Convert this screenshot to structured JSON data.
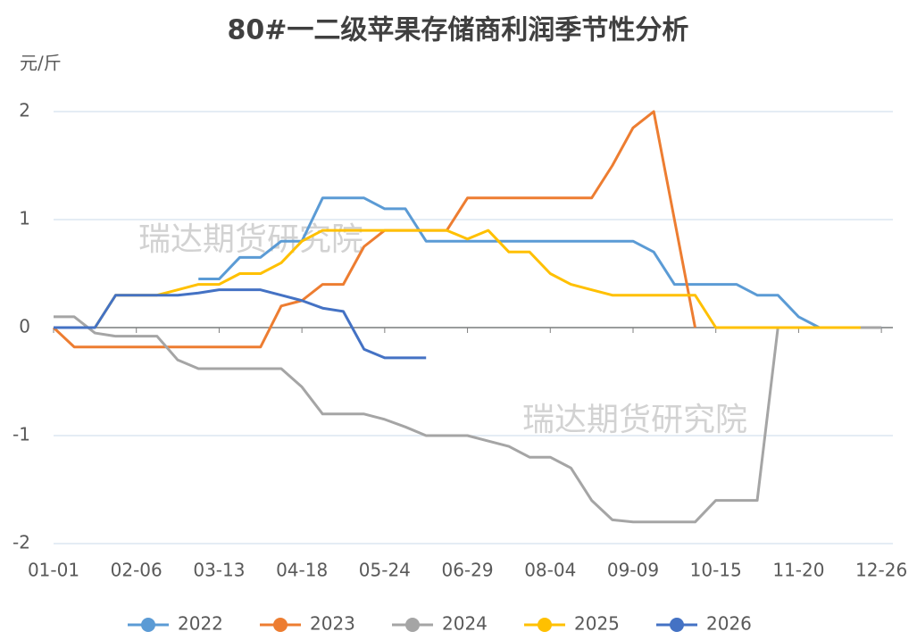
{
  "chart_data": {
    "type": "line",
    "title": "80#一二级苹果存储商利润季节性分析",
    "y_label": "元/斤",
    "annotations": [
      "瑞达期货研究院",
      "瑞达期货研究院"
    ],
    "x": [
      0,
      9,
      18,
      27,
      36,
      45,
      54,
      63,
      72,
      81,
      90,
      99,
      108,
      117,
      126,
      135,
      144,
      153,
      162,
      171,
      180,
      189,
      198,
      207,
      216,
      225,
      234,
      243,
      252,
      261,
      270,
      279,
      288,
      297,
      306,
      315,
      324,
      333,
      342,
      351,
      360
    ],
    "xlim": [
      0,
      365
    ],
    "xticks": [
      {
        "value": 0,
        "label": "01-01"
      },
      {
        "value": 36,
        "label": "02-06"
      },
      {
        "value": 72,
        "label": "03-13"
      },
      {
        "value": 108,
        "label": "04-18"
      },
      {
        "value": 144,
        "label": "05-24"
      },
      {
        "value": 180,
        "label": "06-29"
      },
      {
        "value": 216,
        "label": "08-04"
      },
      {
        "value": 252,
        "label": "09-09"
      },
      {
        "value": 288,
        "label": "10-15"
      },
      {
        "value": 324,
        "label": "11-20"
      },
      {
        "value": 360,
        "label": "12-26"
      }
    ],
    "ylim": [
      -2,
      2
    ],
    "yticks": [
      -2,
      -1,
      0,
      1,
      2
    ],
    "grid": true,
    "legend": "bottom",
    "series": [
      {
        "name": "2022",
        "color": "#5b9bd5",
        "values": [
          null,
          null,
          null,
          null,
          null,
          null,
          null,
          0.45,
          0.45,
          0.65,
          0.65,
          0.8,
          0.8,
          1.2,
          1.2,
          1.2,
          1.1,
          1.1,
          0.8,
          0.8,
          0.8,
          0.8,
          0.8,
          0.8,
          0.8,
          0.8,
          0.8,
          0.8,
          0.8,
          0.7,
          0.4,
          0.4,
          0.4,
          0.4,
          0.3,
          0.3,
          0.1,
          0,
          0,
          0,
          0
        ]
      },
      {
        "name": "2023",
        "color": "#ed7d31",
        "values": [
          0,
          -0.18,
          -0.18,
          -0.18,
          -0.18,
          -0.18,
          -0.18,
          -0.18,
          -0.18,
          -0.18,
          -0.18,
          0.2,
          0.25,
          0.4,
          0.4,
          0.75,
          0.9,
          0.9,
          0.9,
          0.9,
          1.2,
          1.2,
          1.2,
          1.2,
          1.2,
          1.2,
          1.2,
          1.5,
          1.85,
          2.0,
          1.0,
          0,
          null,
          null,
          null,
          null,
          null,
          null,
          null,
          null,
          null
        ]
      },
      {
        "name": "2024",
        "color": "#a5a5a5",
        "values": [
          0.1,
          0.1,
          -0.05,
          -0.08,
          -0.08,
          -0.08,
          -0.3,
          -0.38,
          -0.38,
          -0.38,
          -0.38,
          -0.38,
          -0.55,
          -0.8,
          -0.8,
          -0.8,
          -0.85,
          -0.92,
          -1.0,
          -1.0,
          -1.0,
          -1.05,
          -1.1,
          -1.2,
          -1.2,
          -1.3,
          -1.6,
          -1.78,
          -1.8,
          -1.8,
          -1.8,
          -1.8,
          -1.6,
          -1.6,
          -1.6,
          0,
          0,
          0,
          0,
          0,
          0
        ]
      },
      {
        "name": "2025",
        "color": "#ffc000",
        "values": [
          null,
          null,
          0,
          0.3,
          0.3,
          0.3,
          0.35,
          0.4,
          0.4,
          0.5,
          0.5,
          0.6,
          0.8,
          0.9,
          0.9,
          0.9,
          0.9,
          0.9,
          0.9,
          0.9,
          0.82,
          0.9,
          0.7,
          0.7,
          0.5,
          0.4,
          0.35,
          0.3,
          0.3,
          0.3,
          0.3,
          0.3,
          0,
          0,
          0,
          0,
          0,
          0,
          0,
          0,
          null
        ]
      },
      {
        "name": "2026",
        "color": "#4472c4",
        "values": [
          0,
          0,
          0,
          0.3,
          0.3,
          0.3,
          0.3,
          0.32,
          0.35,
          0.35,
          0.35,
          0.3,
          0.25,
          0.18,
          0.15,
          -0.2,
          -0.28,
          -0.28,
          -0.28,
          null,
          null,
          null,
          null,
          null,
          null,
          null,
          null,
          null,
          null,
          null,
          null,
          null,
          null,
          null,
          null,
          null,
          null,
          null,
          null,
          null,
          null
        ]
      }
    ]
  }
}
